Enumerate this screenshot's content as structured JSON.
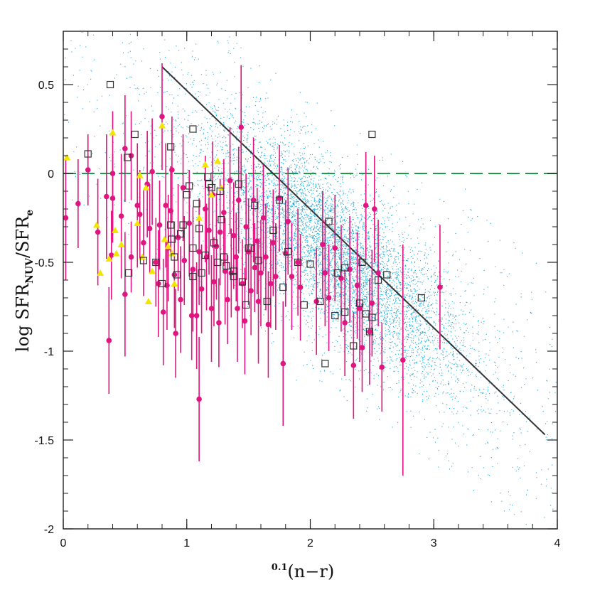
{
  "chart_data": {
    "type": "scatter",
    "xlabel": {
      "superscript": "0.1",
      "main": "(n−r)"
    },
    "ylabel": {
      "prefix": "log  SFR",
      "sub1": "NUV",
      "mid": "/SFR",
      "sub2": "e"
    },
    "xlim": [
      0,
      4
    ],
    "ylim": [
      -2,
      0.8
    ],
    "x_ticks": [
      "0",
      "1",
      "2",
      "3",
      "4"
    ],
    "y_ticks": [
      "-2",
      "-1.5",
      "-1",
      "-0.5",
      "0",
      "0.5"
    ],
    "grid": false,
    "colors": {
      "background_points": "#1ba9d8",
      "magenta": "#e0157f",
      "triangles": "#f2e600",
      "squares": "#333333",
      "fit_line": "#333333",
      "zero_line": "#1f9a4a"
    },
    "reference_line": {
      "y": 0,
      "style": "dashed"
    },
    "fit_line": {
      "x": [
        0.8,
        3.9
      ],
      "y": [
        0.6,
        -1.47
      ]
    },
    "background_cloud": {
      "approx_count": 12000,
      "center_x": 2.2,
      "center_y": -0.45,
      "slope": -0.55
    },
    "series": [
      {
        "marker": "circle-errorbar",
        "points": [
          [
            0.02,
            -0.25,
            0.35
          ],
          [
            0.12,
            -0.17,
            0.25
          ],
          [
            0.2,
            0.02,
            0.2
          ],
          [
            0.28,
            -0.33,
            0.3
          ],
          [
            0.35,
            -0.13,
            0.35
          ],
          [
            0.37,
            -0.94,
            0.3
          ],
          [
            0.39,
            -0.46,
            0.25
          ],
          [
            0.4,
            0.0,
            0.35
          ],
          [
            0.4,
            -0.14,
            0.25
          ],
          [
            0.47,
            -0.24,
            0.35
          ],
          [
            0.5,
            0.14,
            0.3
          ],
          [
            0.5,
            -0.68,
            0.35
          ],
          [
            0.55,
            -0.47,
            0.2
          ],
          [
            0.55,
            0.1,
            0.25
          ],
          [
            0.6,
            -0.18,
            0.35
          ],
          [
            0.62,
            -0.23,
            0.25
          ],
          [
            0.65,
            -0.39,
            0.3
          ],
          [
            0.68,
            -0.06,
            0.3
          ],
          [
            0.7,
            -0.31,
            0.25
          ],
          [
            0.72,
            0.01,
            0.3
          ],
          [
            0.75,
            -0.5,
            0.25
          ],
          [
            0.77,
            -0.62,
            0.3
          ],
          [
            0.78,
            -0.29,
            0.25
          ],
          [
            0.8,
            0.32,
            0.3
          ],
          [
            0.81,
            -0.78,
            0.3
          ],
          [
            0.83,
            -0.18,
            0.35
          ],
          [
            0.84,
            -0.63,
            0.25
          ],
          [
            0.85,
            -0.42,
            0.3
          ],
          [
            0.87,
            -0.21,
            0.25
          ],
          [
            0.88,
            0.02,
            0.3
          ],
          [
            0.9,
            -0.57,
            0.3
          ],
          [
            0.91,
            -0.9,
            0.25
          ],
          [
            0.93,
            -0.36,
            0.3
          ],
          [
            0.95,
            -0.71,
            0.3
          ],
          [
            0.97,
            -0.08,
            0.3
          ],
          [
            0.98,
            -0.49,
            0.25
          ],
          [
            1.02,
            -0.28,
            0.3
          ],
          [
            1.04,
            -0.8,
            0.25
          ],
          [
            1.05,
            -0.54,
            0.35
          ],
          [
            1.08,
            -0.8,
            0.3
          ],
          [
            1.1,
            -1.27,
            0.35
          ],
          [
            1.1,
            -0.44,
            0.3
          ],
          [
            1.12,
            -0.65,
            0.25
          ],
          [
            1.15,
            -0.2,
            0.3
          ],
          [
            1.16,
            -0.47,
            0.3
          ],
          [
            1.18,
            -0.32,
            0.25
          ],
          [
            1.2,
            -0.76,
            0.3
          ],
          [
            1.21,
            -0.12,
            0.3
          ],
          [
            1.22,
            -0.61,
            0.25
          ],
          [
            1.24,
            -0.41,
            0.3
          ],
          [
            1.26,
            -0.84,
            0.25
          ],
          [
            1.27,
            -0.33,
            0.3
          ],
          [
            1.3,
            -0.22,
            0.3
          ],
          [
            1.31,
            -0.55,
            0.3
          ],
          [
            1.33,
            -0.71,
            0.25
          ],
          [
            1.35,
            -0.04,
            0.3
          ],
          [
            1.36,
            -0.56,
            0.25
          ],
          [
            1.38,
            -0.35,
            0.3
          ],
          [
            1.4,
            -0.47,
            0.25
          ],
          [
            1.41,
            -0.76,
            0.3
          ],
          [
            1.42,
            -0.15,
            0.3
          ],
          [
            1.44,
            0.26,
            0.35
          ],
          [
            1.45,
            -0.62,
            0.25
          ],
          [
            1.47,
            -0.83,
            0.3
          ],
          [
            1.48,
            -0.3,
            0.3
          ],
          [
            1.5,
            -0.44,
            0.3
          ],
          [
            1.52,
            -0.66,
            0.25
          ],
          [
            1.54,
            -0.15,
            0.35
          ],
          [
            1.55,
            -0.53,
            0.25
          ],
          [
            1.57,
            -0.38,
            0.3
          ],
          [
            1.58,
            -0.72,
            0.35
          ],
          [
            1.6,
            -0.56,
            0.3
          ],
          [
            1.62,
            -0.25,
            0.3
          ],
          [
            1.64,
            -0.47,
            0.3
          ],
          [
            1.66,
            -0.85,
            0.3
          ],
          [
            1.68,
            -0.62,
            0.25
          ],
          [
            1.7,
            -0.39,
            0.3
          ],
          [
            1.72,
            -0.58,
            0.3
          ],
          [
            1.75,
            -0.14,
            0.3
          ],
          [
            1.78,
            -1.07,
            0.35
          ],
          [
            1.8,
            -0.45,
            0.3
          ],
          [
            1.82,
            -0.27,
            0.3
          ],
          [
            1.85,
            -0.58,
            0.3
          ],
          [
            1.9,
            -0.5,
            0.3
          ],
          [
            1.92,
            -0.64,
            0.3
          ],
          [
            2.05,
            -0.72,
            0.3
          ],
          [
            2.1,
            -0.4,
            0.3
          ],
          [
            2.12,
            -0.56,
            0.3
          ],
          [
            2.15,
            -0.7,
            0.3
          ],
          [
            2.2,
            -0.42,
            0.3
          ],
          [
            2.25,
            -0.59,
            0.3
          ],
          [
            2.28,
            -0.84,
            0.3
          ],
          [
            2.32,
            -0.54,
            0.3
          ],
          [
            2.35,
            -1.08,
            0.3
          ],
          [
            2.38,
            -0.63,
            0.3
          ],
          [
            2.4,
            -0.76,
            0.3
          ],
          [
            2.42,
            -0.98,
            0.25
          ],
          [
            2.45,
            -0.18,
            0.3
          ],
          [
            2.48,
            -0.89,
            0.3
          ],
          [
            2.5,
            -0.73,
            0.3
          ],
          [
            2.52,
            -0.2,
            0.3
          ],
          [
            2.55,
            -0.56,
            0.3
          ],
          [
            2.58,
            -1.09,
            0.25
          ],
          [
            2.75,
            -1.05,
            0.65
          ],
          [
            3.05,
            -0.64,
            0.35
          ]
        ]
      },
      {
        "marker": "triangle",
        "points": [
          [
            0.03,
            0.09
          ],
          [
            0.27,
            -0.29
          ],
          [
            0.3,
            -0.56
          ],
          [
            0.37,
            -0.48
          ],
          [
            0.4,
            0.23
          ],
          [
            0.42,
            -0.32
          ],
          [
            0.43,
            -0.45
          ],
          [
            0.47,
            -0.4
          ],
          [
            0.6,
            -0.28
          ],
          [
            0.62,
            -0.01
          ],
          [
            0.64,
            -0.47
          ],
          [
            0.67,
            -0.08
          ],
          [
            0.69,
            -0.72
          ],
          [
            0.72,
            -0.55
          ],
          [
            0.8,
            0.27
          ],
          [
            0.82,
            -0.37
          ],
          [
            0.85,
            -0.41
          ],
          [
            0.88,
            -0.45
          ],
          [
            0.9,
            -0.62
          ],
          [
            1.1,
            -0.25
          ],
          [
            1.15,
            0.05
          ],
          [
            1.2,
            -0.12
          ],
          [
            1.25,
            0.07
          ],
          [
            1.28,
            -0.08
          ]
        ]
      },
      {
        "marker": "open-square",
        "points": [
          [
            0.2,
            0.11
          ],
          [
            0.38,
            0.5
          ],
          [
            0.58,
            0.22
          ],
          [
            0.52,
            0.09
          ],
          [
            0.53,
            -0.56
          ],
          [
            0.65,
            -0.49
          ],
          [
            0.75,
            -0.5
          ],
          [
            0.8,
            -0.62
          ],
          [
            0.87,
            0.15
          ],
          [
            0.87,
            -0.29
          ],
          [
            0.88,
            -0.37
          ],
          [
            0.9,
            -0.47
          ],
          [
            0.92,
            -0.57
          ],
          [
            0.95,
            -0.34
          ],
          [
            0.97,
            -0.29
          ],
          [
            1.0,
            -0.12
          ],
          [
            1.02,
            -0.07
          ],
          [
            1.05,
            0.25
          ],
          [
            1.05,
            -0.42
          ],
          [
            1.05,
            -0.58
          ],
          [
            1.08,
            -0.17
          ],
          [
            1.1,
            -0.31
          ],
          [
            1.12,
            -0.56
          ],
          [
            1.15,
            -0.46
          ],
          [
            1.17,
            -0.02
          ],
          [
            1.18,
            -0.06
          ],
          [
            1.2,
            -0.08
          ],
          [
            1.22,
            -0.39
          ],
          [
            1.25,
            -0.5
          ],
          [
            1.27,
            -0.1
          ],
          [
            1.28,
            -0.26
          ],
          [
            1.3,
            -0.47
          ],
          [
            1.32,
            -0.52
          ],
          [
            1.38,
            -0.58
          ],
          [
            1.38,
            -0.55
          ],
          [
            1.42,
            -0.06
          ],
          [
            1.45,
            -0.61
          ],
          [
            1.48,
            -0.74
          ],
          [
            1.5,
            -0.42
          ],
          [
            1.52,
            -0.42
          ],
          [
            1.55,
            -0.18
          ],
          [
            1.58,
            -0.49
          ],
          [
            1.65,
            -0.72
          ],
          [
            1.7,
            -0.32
          ],
          [
            1.75,
            -0.15
          ],
          [
            1.78,
            -0.64
          ],
          [
            1.82,
            -0.44
          ],
          [
            1.9,
            -0.5
          ],
          [
            1.95,
            -0.74
          ],
          [
            2.0,
            -0.51
          ],
          [
            2.08,
            -0.72
          ],
          [
            2.12,
            -1.07
          ],
          [
            2.15,
            -0.27
          ],
          [
            2.2,
            -0.8
          ],
          [
            2.22,
            -0.56
          ],
          [
            2.28,
            -0.53
          ],
          [
            2.28,
            -0.78
          ],
          [
            2.35,
            -0.97
          ],
          [
            2.4,
            -0.73
          ],
          [
            2.42,
            -0.5
          ],
          [
            2.45,
            -0.79
          ],
          [
            2.48,
            -0.89
          ],
          [
            2.5,
            -0.81
          ],
          [
            2.5,
            0.22
          ],
          [
            2.55,
            -0.6
          ],
          [
            2.62,
            -0.57
          ],
          [
            2.9,
            -0.7
          ]
        ]
      }
    ]
  }
}
